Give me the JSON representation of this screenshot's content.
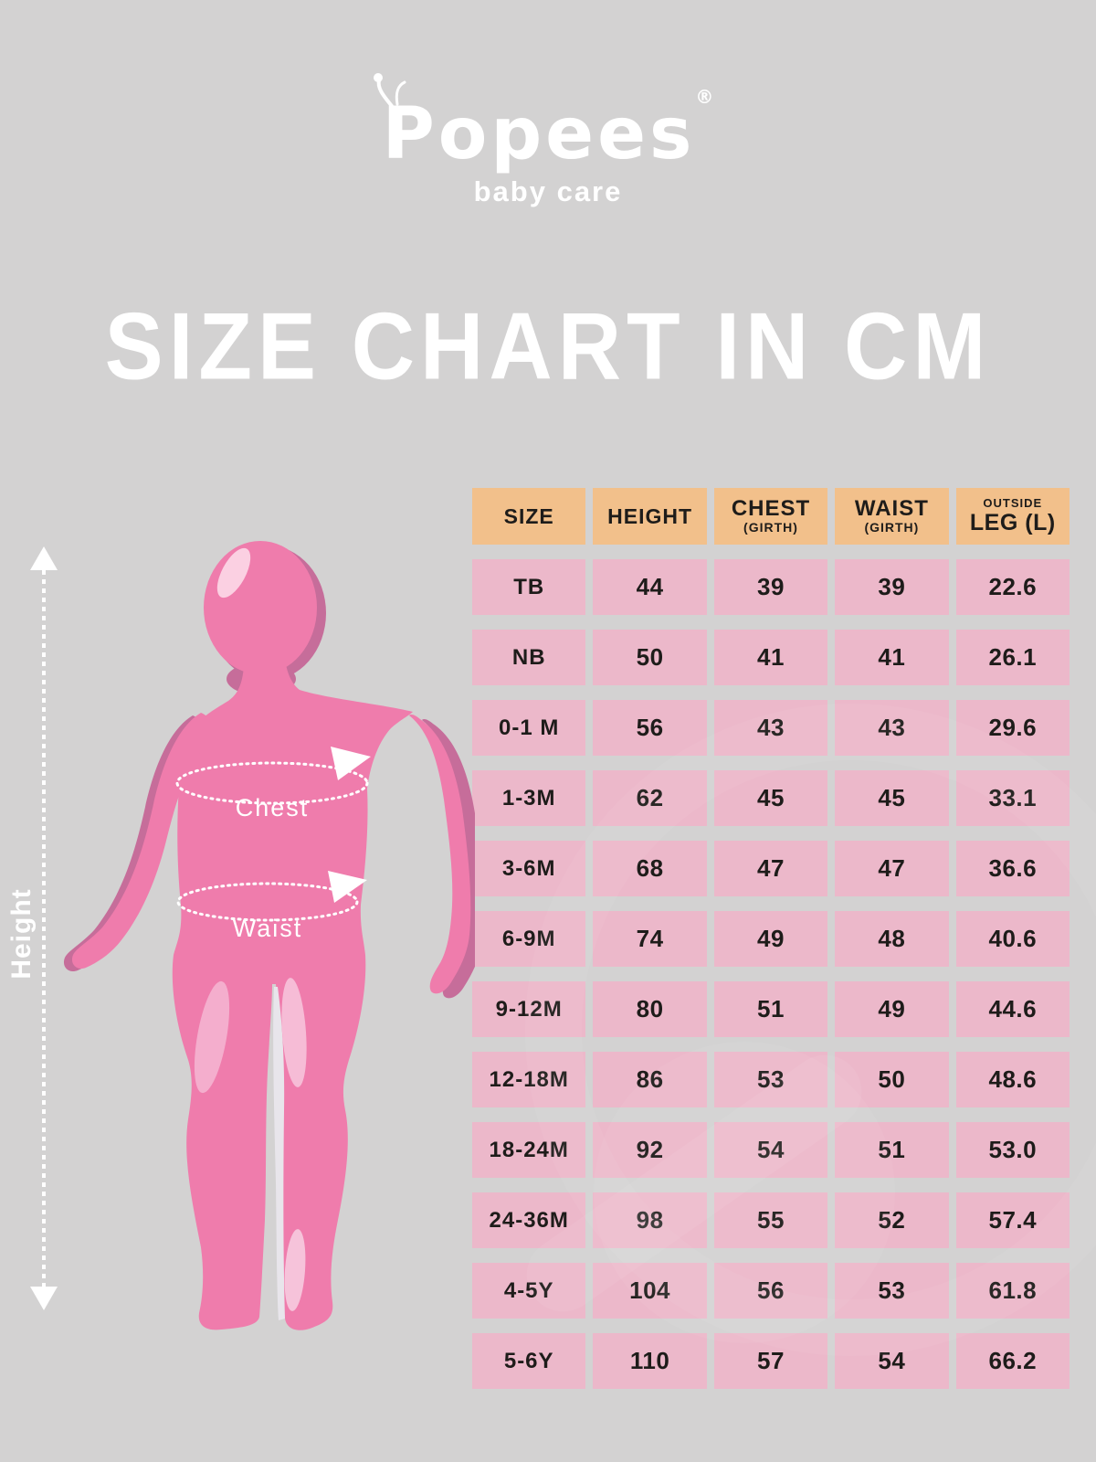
{
  "brand": {
    "logo_text": "Popees",
    "registered_mark": "®",
    "tagline": "baby care"
  },
  "title": "SIZE CHART IN CM",
  "figure": {
    "height_label": "Height",
    "chest_label": "Chest",
    "waist_label": "Waist"
  },
  "table": {
    "headers": [
      {
        "line1": "SIZE",
        "line2": ""
      },
      {
        "line1": "HEIGHT",
        "line2": ""
      },
      {
        "line1": "CHEST",
        "line2": "(GIRTH)"
      },
      {
        "line1": "WAIST",
        "line2": "(GIRTH)"
      },
      {
        "line1": "OUTSIDE",
        "line2": "LEG (L)"
      }
    ],
    "rows": [
      [
        "TB",
        "44",
        "39",
        "39",
        "22.6"
      ],
      [
        "NB",
        "50",
        "41",
        "41",
        "26.1"
      ],
      [
        "0-1 M",
        "56",
        "43",
        "43",
        "29.6"
      ],
      [
        "1-3M",
        "62",
        "45",
        "45",
        "33.1"
      ],
      [
        "3-6M",
        "68",
        "47",
        "47",
        "36.6"
      ],
      [
        "6-9M",
        "74",
        "49",
        "48",
        "40.6"
      ],
      [
        "9-12M",
        "80",
        "51",
        "49",
        "44.6"
      ],
      [
        "12-18M",
        "86",
        "53",
        "50",
        "48.6"
      ],
      [
        "18-24M",
        "92",
        "54",
        "51",
        "53.0"
      ],
      [
        "24-36M",
        "98",
        "55",
        "52",
        "57.4"
      ],
      [
        "4-5Y",
        "104",
        "56",
        "53",
        "61.8"
      ],
      [
        "5-6Y",
        "110",
        "57",
        "54",
        "66.2"
      ]
    ]
  },
  "chart_data": {
    "type": "table",
    "title": "SIZE CHART IN CM",
    "units": "cm",
    "columns": [
      "SIZE",
      "HEIGHT",
      "CHEST (GIRTH)",
      "WAIST (GIRTH)",
      "OUTSIDE LEG (L)"
    ],
    "rows": [
      [
        "TB",
        44,
        39,
        39,
        22.6
      ],
      [
        "NB",
        50,
        41,
        41,
        26.1
      ],
      [
        "0-1 M",
        56,
        43,
        43,
        29.6
      ],
      [
        "1-3M",
        62,
        45,
        45,
        33.1
      ],
      [
        "3-6M",
        68,
        47,
        47,
        36.6
      ],
      [
        "6-9M",
        74,
        49,
        48,
        40.6
      ],
      [
        "9-12M",
        80,
        51,
        49,
        44.6
      ],
      [
        "12-18M",
        86,
        53,
        50,
        48.6
      ],
      [
        "18-24M",
        92,
        54,
        51,
        53.0
      ],
      [
        "24-36M",
        98,
        55,
        52,
        57.4
      ],
      [
        "4-5Y",
        104,
        56,
        53,
        61.8
      ],
      [
        "5-6Y",
        110,
        57,
        54,
        66.2
      ]
    ]
  },
  "colors": {
    "background": "#d3d2d2",
    "header_fill": "#f2c08b",
    "cell_fill": "#ecb8ca",
    "text": "#1e1c1a",
    "white": "#ffffff",
    "figure_pink": "#ef7cac",
    "figure_shadow": "#c66d9a",
    "figure_highlight": "#f5b3d0"
  }
}
